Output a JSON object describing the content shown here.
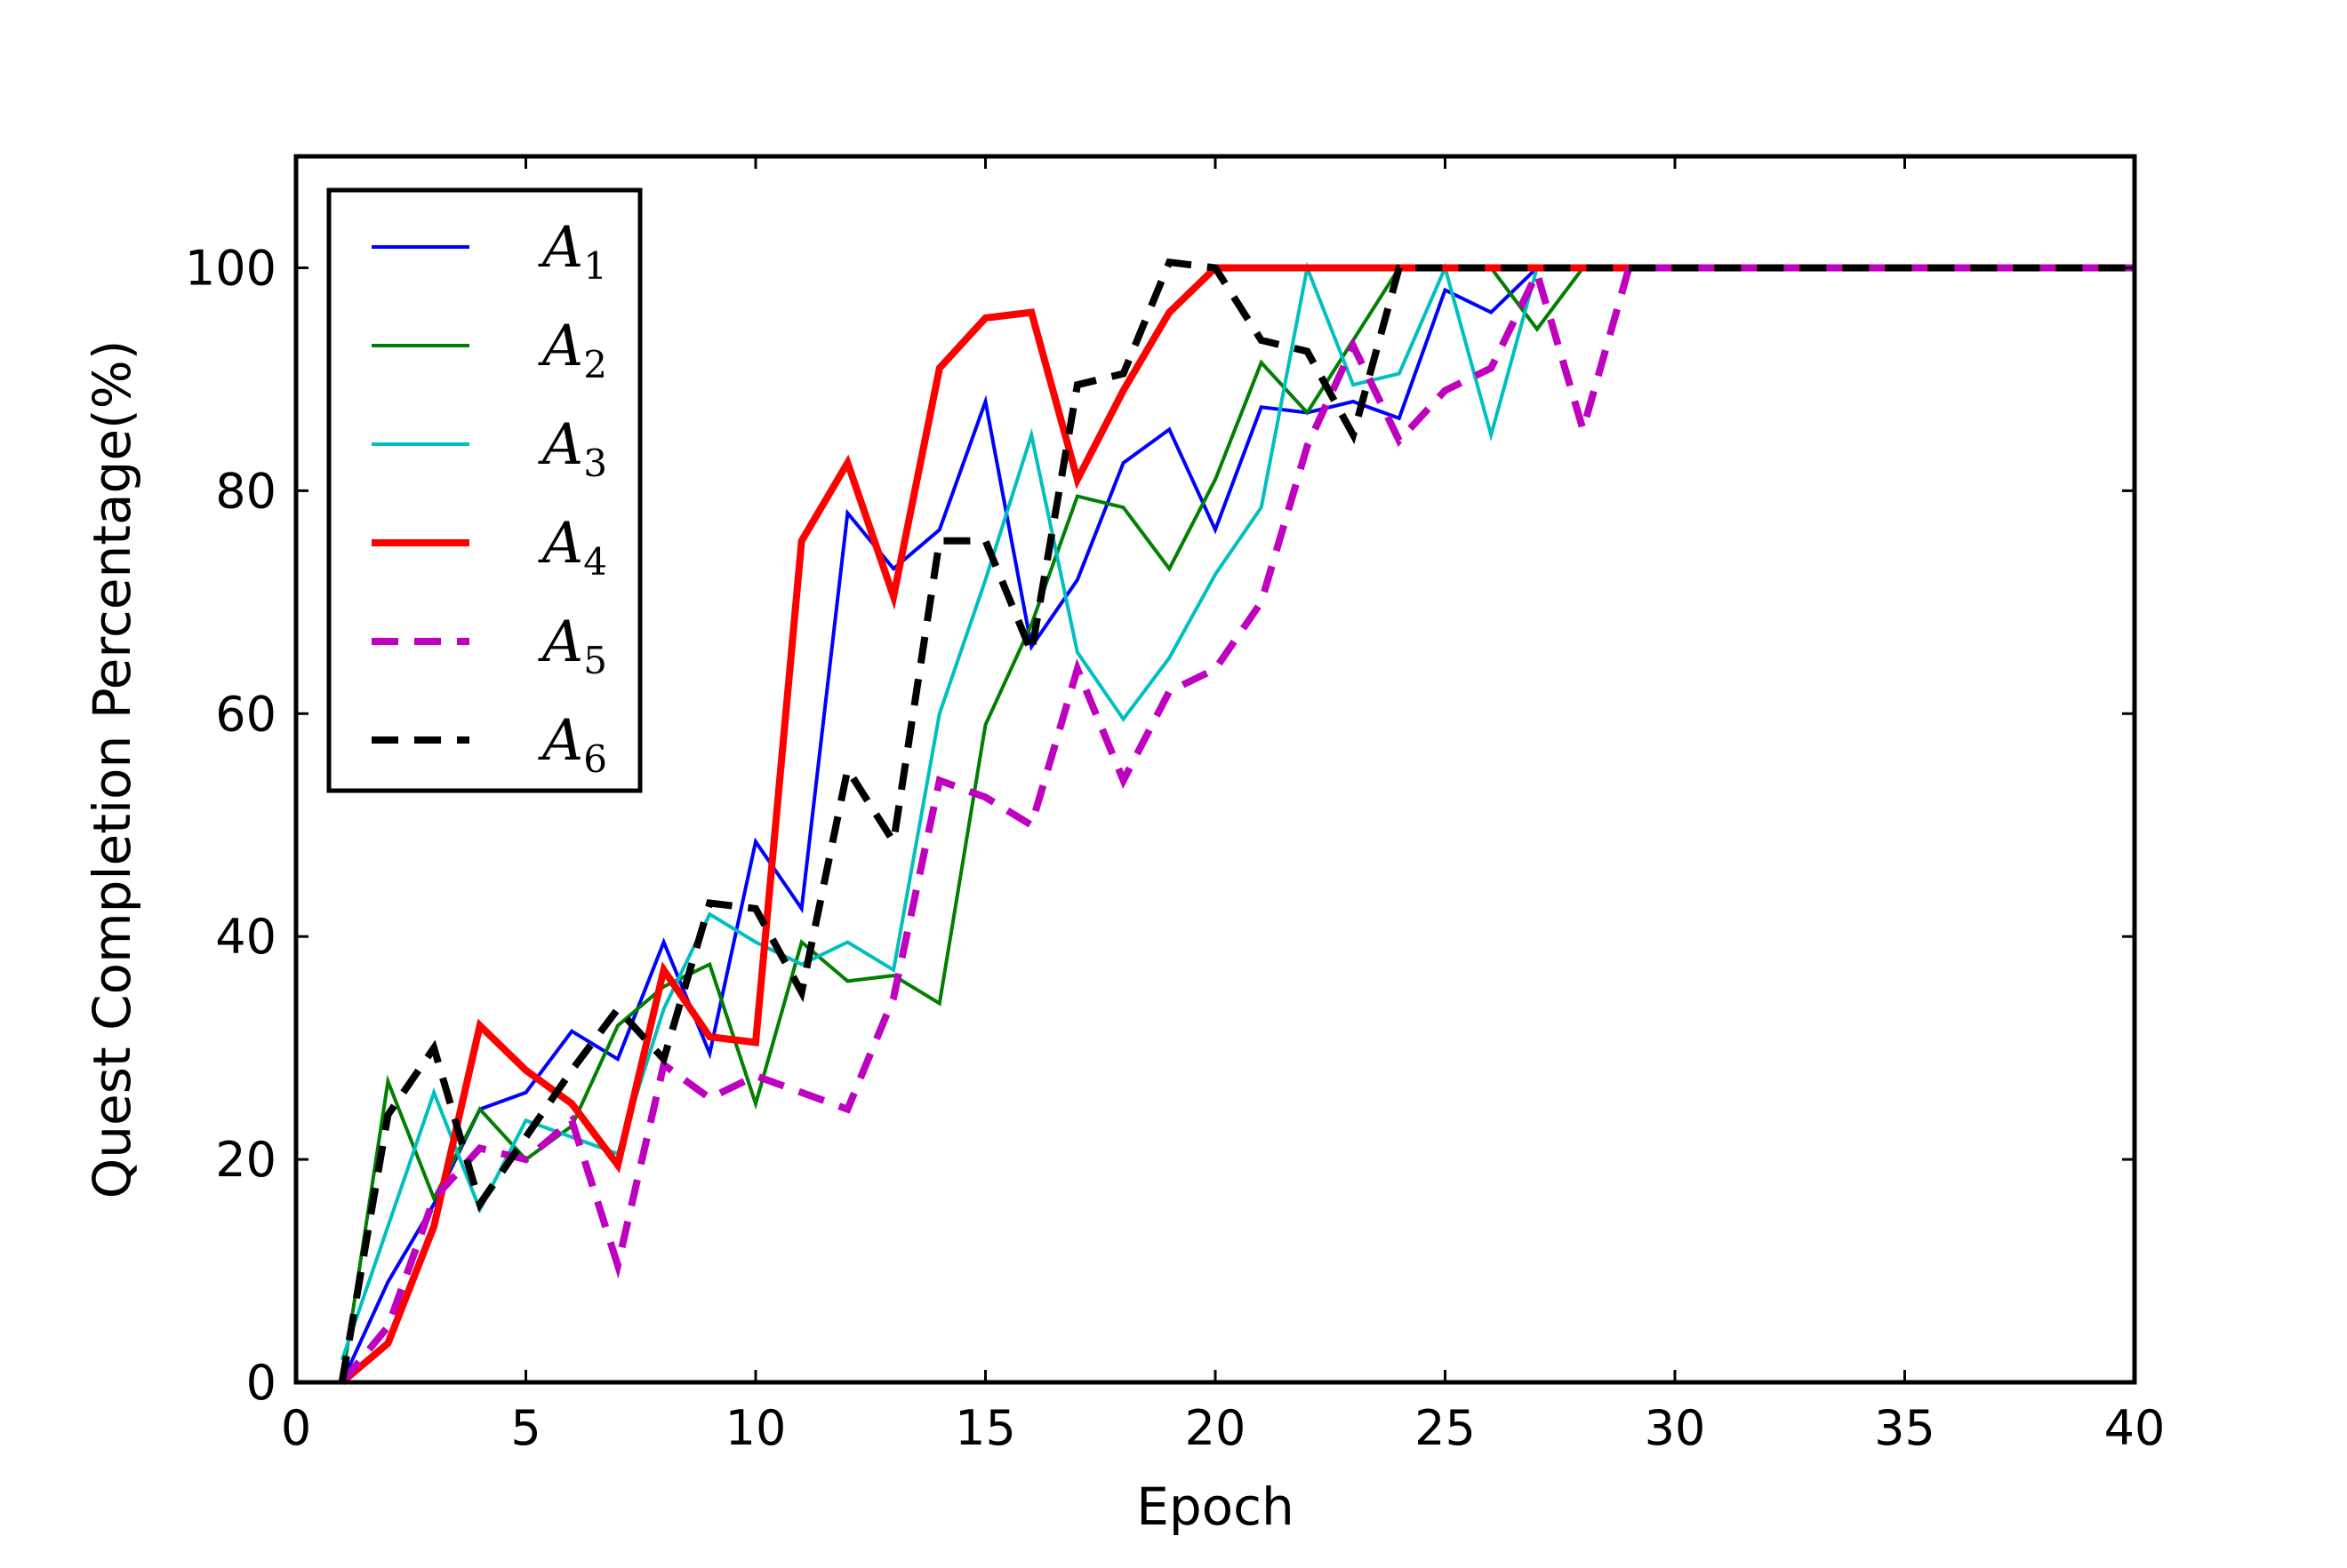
{
  "chart_data": {
    "type": "line",
    "title": "",
    "xlabel": "Epoch",
    "ylabel": "Quest Completion Percentage(%)",
    "xlim": [
      0,
      40
    ],
    "ylim": [
      0,
      110
    ],
    "xticks": [
      0,
      5,
      10,
      15,
      20,
      25,
      30,
      35,
      40
    ],
    "yticks": [
      0,
      20,
      40,
      60,
      80,
      100
    ],
    "grid": false,
    "legend_position": "upper left",
    "series": [
      {
        "name": "A1",
        "symbol": "A",
        "subscript": "1",
        "color": "#0000ff",
        "style": "solid",
        "width": "thin",
        "x": [
          1,
          2,
          3,
          4,
          5,
          6,
          7,
          8,
          9,
          10,
          11,
          12,
          13,
          14,
          15,
          16,
          17,
          18,
          19,
          20,
          21,
          22,
          23,
          24,
          25,
          26,
          27,
          28,
          29,
          30,
          31,
          32,
          33,
          34,
          35,
          36,
          37,
          38,
          39,
          40
        ],
        "y": [
          0,
          9,
          16,
          24.5,
          26,
          31.5,
          29,
          39.5,
          29.5,
          48.5,
          42.5,
          78,
          73,
          76.5,
          88,
          66,
          72,
          82.5,
          85.5,
          76.5,
          87.5,
          87,
          88,
          86.5,
          98,
          96,
          100,
          100,
          100,
          100,
          100,
          100,
          100,
          100,
          100,
          100,
          100,
          100,
          100,
          100
        ]
      },
      {
        "name": "A2",
        "symbol": "A",
        "subscript": "2",
        "color": "#007f00",
        "style": "solid",
        "width": "thin",
        "x": [
          1,
          2,
          3,
          4,
          5,
          6,
          7,
          8,
          9,
          10,
          11,
          12,
          13,
          14,
          15,
          16,
          17,
          18,
          19,
          20,
          21,
          22,
          23,
          24,
          25,
          26,
          27,
          28,
          29,
          30,
          31,
          32,
          33,
          34,
          35,
          36,
          37,
          38,
          39,
          40
        ],
        "y": [
          0,
          27,
          16.5,
          24.5,
          20,
          23,
          32,
          35.5,
          37.5,
          25,
          39.5,
          36,
          36.5,
          34,
          59,
          68,
          79.5,
          78.5,
          73,
          81,
          91.5,
          87,
          93.5,
          100,
          100,
          100,
          94.5,
          100,
          100,
          100,
          100,
          100,
          100,
          100,
          100,
          100,
          100,
          100,
          100,
          100
        ]
      },
      {
        "name": "A3",
        "symbol": "A",
        "subscript": "3",
        "color": "#00bfbf",
        "style": "solid",
        "width": "thin",
        "x": [
          1,
          2,
          3,
          4,
          5,
          6,
          7,
          8,
          9,
          10,
          11,
          12,
          13,
          14,
          15,
          16,
          17,
          18,
          19,
          20,
          21,
          22,
          23,
          24,
          25,
          26,
          27,
          28,
          29,
          30,
          31,
          32,
          33,
          34,
          35,
          36,
          37,
          38,
          39,
          40
        ],
        "y": [
          2,
          14,
          26,
          15.5,
          23.5,
          22,
          20.5,
          33.5,
          42,
          39.5,
          37.5,
          39.5,
          37,
          60,
          72,
          85,
          65.5,
          59.5,
          65,
          72.5,
          78.5,
          100,
          89.5,
          90.5,
          100,
          85,
          100,
          100,
          100,
          100,
          100,
          100,
          100,
          100,
          100,
          100,
          100,
          100,
          100,
          100
        ]
      },
      {
        "name": "A4",
        "symbol": "A",
        "subscript": "4",
        "color": "#ff0000",
        "style": "solid",
        "width": "thick",
        "x": [
          1,
          2,
          3,
          4,
          5,
          6,
          7,
          8,
          9,
          10,
          11,
          12,
          13,
          14,
          15,
          16,
          17,
          18,
          19,
          20,
          21,
          22,
          23,
          24,
          25,
          26,
          27,
          28,
          29,
          30,
          31,
          32,
          33,
          34,
          35,
          36,
          37,
          38,
          39,
          40
        ],
        "y": [
          0,
          3.5,
          14,
          32,
          28,
          25,
          19.5,
          37,
          31,
          30.5,
          75.5,
          82.5,
          70.5,
          91,
          95.5,
          96,
          81,
          89,
          96,
          100,
          100,
          100,
          100,
          100,
          100,
          100,
          100,
          100,
          100,
          100,
          100,
          100,
          100,
          100,
          100,
          100,
          100,
          100,
          100,
          100
        ]
      },
      {
        "name": "A5",
        "symbol": "A",
        "subscript": "5",
        "color": "#bf00bf",
        "style": "dashed",
        "width": "thick",
        "x": [
          1,
          2,
          3,
          4,
          5,
          6,
          7,
          8,
          9,
          10,
          11,
          12,
          13,
          14,
          15,
          16,
          17,
          18,
          19,
          20,
          21,
          22,
          23,
          24,
          25,
          26,
          27,
          28,
          29,
          30,
          31,
          32,
          33,
          34,
          35,
          36,
          37,
          38,
          39,
          40
        ],
        "y": [
          0,
          5,
          16.5,
          21,
          20,
          23.5,
          10.5,
          28.5,
          25.5,
          27.5,
          26,
          24.5,
          34.5,
          54,
          52.5,
          50,
          64,
          54,
          62,
          64,
          70,
          84,
          93,
          84.5,
          89,
          91,
          99.5,
          85.5,
          100,
          100,
          100,
          100,
          100,
          100,
          100,
          100,
          100,
          100,
          100,
          100
        ]
      },
      {
        "name": "A6",
        "symbol": "A",
        "subscript": "6",
        "color": "#000000",
        "style": "dashed",
        "width": "thick",
        "x": [
          1,
          2,
          3,
          4,
          5,
          6,
          7,
          8,
          9,
          10,
          11,
          12,
          13,
          14,
          15,
          16,
          17,
          18,
          19,
          20,
          21,
          22,
          23,
          24,
          25,
          26,
          27,
          28,
          29,
          30,
          31,
          32,
          33,
          34,
          35,
          36,
          37,
          38,
          39,
          40
        ],
        "y": [
          0,
          24,
          30,
          16,
          22,
          28,
          33.5,
          29,
          43,
          42.5,
          35,
          55,
          48.5,
          75.5,
          75.5,
          65.5,
          89.5,
          90.5,
          100.5,
          100,
          93.5,
          92.5,
          85,
          100,
          100,
          100,
          100,
          100,
          100,
          100,
          100,
          100,
          100,
          100,
          100,
          100,
          100,
          100,
          100,
          100
        ]
      }
    ]
  }
}
